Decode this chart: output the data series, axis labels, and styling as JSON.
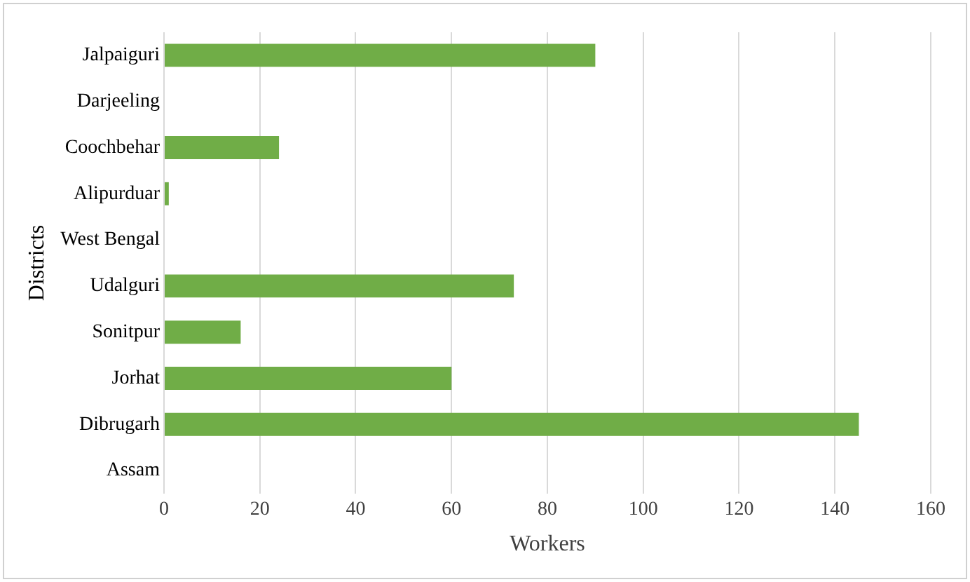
{
  "chart_data": {
    "type": "bar",
    "orientation": "horizontal",
    "xlabel": "Workers",
    "ylabel": "Districts",
    "categories": [
      "Jalpaiguri",
      "Darjeeling",
      "Coochbehar",
      "Alipurduar",
      "West Bengal",
      "Udalguri",
      "Sonitpur",
      "Jorhat",
      "Dibrugarh",
      "Assam"
    ],
    "values": [
      90,
      0,
      24,
      1,
      null,
      73,
      16,
      60,
      145,
      null
    ],
    "color": "#70ad47",
    "xlim": [
      0,
      160
    ],
    "xticks": [
      0,
      20,
      40,
      60,
      80,
      100,
      120,
      140,
      160
    ],
    "grid": "x",
    "legend": false
  }
}
